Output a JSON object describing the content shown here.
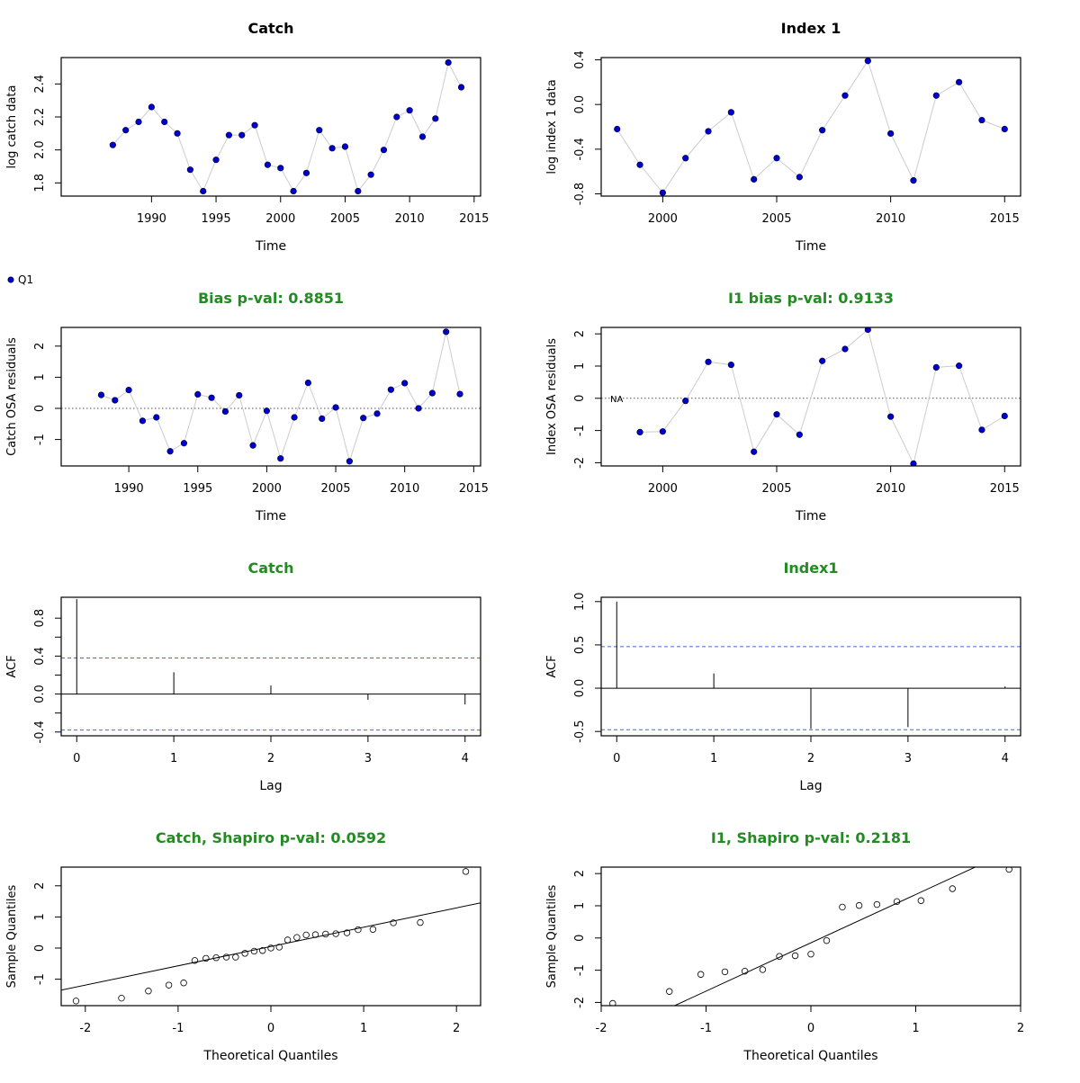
{
  "colors": {
    "points": "#0000cd",
    "connector": "#cccccc",
    "green_title": "#228b22",
    "conf_band": "#4169e1",
    "axis": "#000000"
  },
  "legend": {
    "label": "Q1"
  },
  "panels": [
    {
      "title": "Catch",
      "title_color": "#000000",
      "xlabel": "Time",
      "ylabel": "log catch data",
      "chart_data": {
        "type": "line",
        "x": [
          1987,
          1988,
          1989,
          1990,
          1991,
          1992,
          1993,
          1994,
          1995,
          1996,
          1997,
          1998,
          1999,
          2000,
          2001,
          2002,
          2003,
          2004,
          2005,
          2006,
          2007,
          2008,
          2009,
          2010,
          2011,
          2012,
          2013,
          2014
        ],
        "y": [
          2.03,
          2.12,
          2.17,
          2.26,
          2.17,
          2.1,
          1.88,
          1.75,
          1.94,
          2.09,
          2.09,
          2.15,
          1.91,
          1.89,
          1.75,
          1.86,
          2.12,
          2.01,
          2.02,
          1.75,
          1.85,
          2.0,
          2.2,
          2.24,
          2.08,
          2.19,
          2.53,
          2.38
        ],
        "xlim": [
          1983,
          2015.5
        ],
        "ylim": [
          1.72,
          2.56
        ],
        "xticks": [
          1990,
          1995,
          2000,
          2005,
          2010,
          2015
        ],
        "yticks": [
          1.8,
          2.0,
          2.2,
          2.4
        ],
        "ytick_labels": [
          "1.8",
          "2.0",
          "2.2",
          "2.4"
        ]
      }
    },
    {
      "title": "Index 1",
      "title_color": "#000000",
      "xlabel": "Time",
      "ylabel": "log index 1 data",
      "chart_data": {
        "type": "line",
        "x": [
          1998,
          1999,
          2000,
          2001,
          2002,
          2003,
          2004,
          2005,
          2006,
          2007,
          2008,
          2009,
          2010,
          2011,
          2012,
          2013,
          2014,
          2015
        ],
        "y": [
          -0.22,
          -0.54,
          -0.79,
          -0.48,
          -0.24,
          -0.07,
          -0.67,
          -0.48,
          -0.65,
          -0.23,
          0.08,
          0.39,
          -0.26,
          -0.68,
          0.08,
          0.2,
          -0.14,
          -0.22
        ],
        "xlim": [
          1997.3,
          2015.7
        ],
        "ylim": [
          -0.82,
          0.42
        ],
        "xticks": [
          2000,
          2005,
          2010,
          2015
        ],
        "yticks": [
          -0.8,
          -0.4,
          0.0,
          0.4
        ],
        "ytick_labels": [
          "-0.8",
          "-0.4",
          "0.0",
          "0.4"
        ]
      }
    },
    {
      "title": "Bias p-val: 0.8851",
      "title_color": "#228b22",
      "xlabel": "Time",
      "ylabel": "Catch OSA residuals",
      "chart_data": {
        "type": "line",
        "x": [
          1988,
          1989,
          1990,
          1991,
          1992,
          1993,
          1994,
          1995,
          1996,
          1997,
          1998,
          1999,
          2000,
          2001,
          2002,
          2003,
          2004,
          2005,
          2006,
          2007,
          2008,
          2009,
          2010,
          2011,
          2012,
          2013,
          2014
        ],
        "y": [
          0.43,
          0.26,
          0.59,
          -0.4,
          -0.29,
          -1.38,
          -1.12,
          0.45,
          0.34,
          -0.1,
          0.42,
          -1.19,
          -0.08,
          -1.61,
          -0.29,
          0.82,
          -0.33,
          0.03,
          -1.7,
          -0.31,
          -0.17,
          0.6,
          0.81,
          0.0,
          0.49,
          2.46,
          0.46
        ],
        "xlim": [
          1985.1,
          2015.5
        ],
        "ylim": [
          -1.85,
          2.6
        ],
        "xticks": [
          1990,
          1995,
          2000,
          2005,
          2010,
          2015
        ],
        "yticks": [
          -1,
          0,
          1,
          2
        ],
        "ytick_labels": [
          "-1",
          "0",
          "1",
          "2"
        ],
        "hline": 0
      }
    },
    {
      "title": "I1 bias p-val: 0.9133",
      "title_color": "#228b22",
      "xlabel": "Time",
      "ylabel": "Index OSA residuals",
      "na_label": "NA",
      "chart_data": {
        "type": "line",
        "x": [
          1999,
          2000,
          2001,
          2002,
          2003,
          2004,
          2005,
          2006,
          2007,
          2008,
          2009,
          2010,
          2011,
          2012,
          2013,
          2014,
          2015
        ],
        "y": [
          -1.05,
          -1.03,
          -0.08,
          1.13,
          1.04,
          -1.66,
          -0.5,
          -1.13,
          1.16,
          1.53,
          2.13,
          -0.57,
          -2.03,
          0.96,
          1.01,
          -0.98,
          -0.55
        ],
        "xlim": [
          1997.3,
          2015.7
        ],
        "ylim": [
          -2.1,
          2.2
        ],
        "xticks": [
          2000,
          2005,
          2010,
          2015
        ],
        "yticks": [
          -2,
          -1,
          0,
          1,
          2
        ],
        "ytick_labels": [
          "-2",
          "-1",
          "0",
          "1",
          "2"
        ],
        "hline": 0
      }
    },
    {
      "title": "Catch",
      "title_color": "#228b22",
      "xlabel": "Lag",
      "ylabel": "ACF",
      "chart_data": {
        "type": "acf",
        "lags": [
          0,
          1,
          2,
          3,
          4
        ],
        "acf": [
          1.0,
          0.23,
          0.09,
          -0.06,
          -0.11
        ],
        "ci": 0.38,
        "xlim": [
          -0.16,
          4.16
        ],
        "ylim": [
          -0.44,
          1.02
        ],
        "xticks": [
          0,
          1,
          2,
          3,
          4
        ],
        "yticks": [
          -0.4,
          0.0,
          0.4,
          0.8
        ],
        "ytick_labels": [
          "-0.4",
          "0.0",
          "0.4",
          "0.8"
        ],
        "minor_yticks": [
          -0.2,
          0.2,
          0.6
        ]
      }
    },
    {
      "title": "Index1",
      "title_color": "#228b22",
      "xlabel": "Lag",
      "ylabel": "ACF",
      "chart_data": {
        "type": "acf",
        "lags": [
          0,
          1,
          2,
          3,
          4
        ],
        "acf": [
          1.0,
          0.17,
          -0.47,
          -0.45,
          0.02
        ],
        "ci": 0.48,
        "xlim": [
          -0.16,
          4.16
        ],
        "ylim": [
          -0.55,
          1.05
        ],
        "xticks": [
          0,
          1,
          2,
          3,
          4
        ],
        "yticks": [
          -0.5,
          0.0,
          0.5,
          1.0
        ],
        "ytick_labels": [
          "-0.5",
          "0.0",
          "0.5",
          "1.0"
        ]
      }
    },
    {
      "title": "Catch, Shapiro p-val: 0.0592",
      "title_color": "#228b22",
      "xlabel": "Theoretical Quantiles",
      "ylabel": "Sample Quantiles",
      "chart_data": {
        "type": "scatter",
        "qqline": {
          "intercept": 0.05,
          "slope": 0.62
        },
        "x": [
          -2.1,
          -1.61,
          -1.32,
          -1.1,
          -0.94,
          -0.82,
          -0.7,
          -0.59,
          -0.48,
          -0.38,
          -0.28,
          -0.18,
          -0.09,
          0.0,
          0.09,
          0.18,
          0.28,
          0.38,
          0.48,
          0.59,
          0.7,
          0.82,
          0.94,
          1.1,
          1.32,
          1.61,
          2.1
        ],
        "y": [
          -1.7,
          -1.61,
          -1.38,
          -1.19,
          -1.12,
          -0.4,
          -0.33,
          -0.31,
          -0.29,
          -0.29,
          -0.17,
          -0.1,
          -0.08,
          0.0,
          0.03,
          0.26,
          0.34,
          0.42,
          0.43,
          0.45,
          0.46,
          0.49,
          0.59,
          0.6,
          0.81,
          0.82,
          2.46
        ],
        "xlim": [
          -2.26,
          2.26
        ],
        "ylim": [
          -1.85,
          2.6
        ],
        "xticks": [
          -2,
          -1,
          0,
          1,
          2
        ],
        "yticks": [
          -1,
          0,
          1,
          2
        ],
        "ytick_labels": [
          "-1",
          "0",
          "1",
          "2"
        ]
      }
    },
    {
      "title": "I1, Shapiro p-val: 0.2181",
      "title_color": "#228b22",
      "xlabel": "Theoretical Quantiles",
      "ylabel": "Sample Quantiles",
      "chart_data": {
        "type": "scatter",
        "qqline": {
          "intercept": -0.15,
          "slope": 1.5
        },
        "x": [
          -1.89,
          -1.35,
          -1.05,
          -0.82,
          -0.63,
          -0.46,
          -0.3,
          -0.15,
          0.0,
          0.15,
          0.3,
          0.46,
          0.63,
          0.82,
          1.05,
          1.35,
          1.89
        ],
        "y": [
          -2.03,
          -1.66,
          -1.13,
          -1.05,
          -1.03,
          -0.98,
          -0.57,
          -0.55,
          -0.5,
          -0.08,
          0.96,
          1.01,
          1.04,
          1.13,
          1.16,
          1.53,
          2.13
        ],
        "xlim": [
          -2.0,
          2.0
        ],
        "ylim": [
          -2.1,
          2.2
        ],
        "xticks": [
          -2,
          -1,
          0,
          1,
          2
        ],
        "yticks": [
          -2,
          -1,
          0,
          1,
          2
        ],
        "ytick_labels": [
          "-2",
          "-1",
          "0",
          "1",
          "2"
        ]
      }
    }
  ]
}
